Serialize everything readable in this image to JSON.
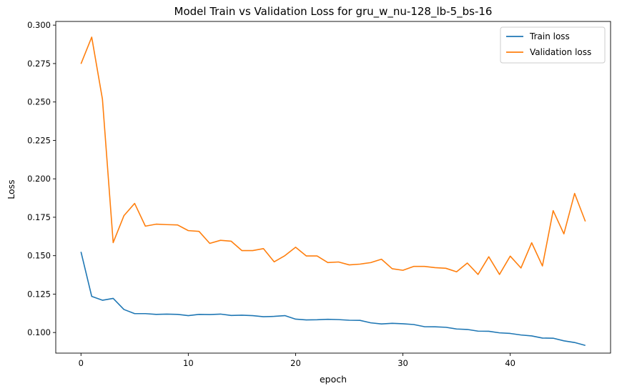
{
  "chart_data": {
    "type": "line",
    "title": "Model Train vs Validation Loss for gru_w_nu-128_lb-5_bs-16",
    "xlabel": "epoch",
    "ylabel": "Loss",
    "xlim": [
      -2.35,
      49.35
    ],
    "ylim": [
      0.0866,
      0.3024
    ],
    "xticks": [
      0,
      10,
      20,
      30,
      40
    ],
    "xtick_labels": [
      "0",
      "10",
      "20",
      "30",
      "40"
    ],
    "yticks": [
      0.1,
      0.125,
      0.15,
      0.175,
      0.2,
      0.225,
      0.25,
      0.275,
      0.3
    ],
    "ytick_labels": [
      "0.100",
      "0.125",
      "0.150",
      "0.175",
      "0.200",
      "0.225",
      "0.250",
      "0.275",
      "0.300"
    ],
    "grid": false,
    "legend_position": "top-right",
    "x": [
      0,
      1,
      2,
      3,
      4,
      5,
      6,
      7,
      8,
      9,
      10,
      11,
      12,
      13,
      14,
      15,
      16,
      17,
      18,
      19,
      20,
      21,
      22,
      23,
      24,
      25,
      26,
      27,
      28,
      29,
      30,
      31,
      32,
      33,
      34,
      35,
      36,
      37,
      38,
      39,
      40,
      41,
      42,
      43,
      44,
      45,
      46,
      47
    ],
    "series": [
      {
        "name": "Train loss",
        "color": "#1f77b4",
        "values": [
          0.1525,
          0.1235,
          0.121,
          0.1222,
          0.115,
          0.1123,
          0.1123,
          0.1118,
          0.112,
          0.1118,
          0.111,
          0.1118,
          0.1117,
          0.112,
          0.1111,
          0.1113,
          0.111,
          0.1103,
          0.1105,
          0.111,
          0.1087,
          0.1082,
          0.1083,
          0.1086,
          0.1084,
          0.108,
          0.1079,
          0.1063,
          0.1056,
          0.106,
          0.1057,
          0.1052,
          0.1038,
          0.1037,
          0.1034,
          0.1023,
          0.102,
          0.1009,
          0.1008,
          0.0998,
          0.0994,
          0.0984,
          0.0978,
          0.0964,
          0.0963,
          0.0946,
          0.0935,
          0.0916
        ]
      },
      {
        "name": "Validation loss",
        "color": "#ff7f0e",
        "values": [
          0.2748,
          0.2922,
          0.2518,
          0.1585,
          0.176,
          0.184,
          0.1692,
          0.1705,
          0.1702,
          0.17,
          0.1663,
          0.1658,
          0.158,
          0.16,
          0.1594,
          0.1533,
          0.1533,
          0.1546,
          0.146,
          0.15,
          0.1555,
          0.1498,
          0.1498,
          0.1455,
          0.1459,
          0.144,
          0.1445,
          0.1455,
          0.1477,
          0.1415,
          0.1405,
          0.143,
          0.143,
          0.1422,
          0.1418,
          0.1395,
          0.1452,
          0.1378,
          0.1493,
          0.1378,
          0.1497,
          0.142,
          0.1584,
          0.1433,
          0.1793,
          0.1642,
          0.1905,
          0.1723
        ]
      }
    ]
  }
}
